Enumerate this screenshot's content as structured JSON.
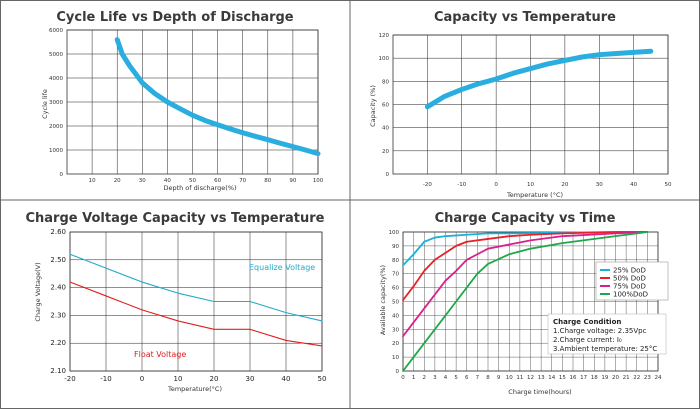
{
  "chart_data": [
    {
      "type": "line",
      "title": "Cycle Life vs Depth of Discharge",
      "xlabel": "Depth of discharge(%)",
      "ylabel": "Cycle life",
      "xlim": [
        0,
        100
      ],
      "ylim": [
        0,
        6000
      ],
      "xticks": [
        "10",
        "20",
        "30",
        "40",
        "50",
        "60",
        "70",
        "80",
        "90",
        "100"
      ],
      "yticks": [
        "1000",
        "2000",
        "3000",
        "4000",
        "5000",
        "6000"
      ],
      "color": "#2aaee0",
      "series": [
        {
          "x": [
            20,
            22,
            25,
            30,
            35,
            40,
            45,
            50,
            55,
            60,
            65,
            70,
            75,
            80,
            85,
            90,
            95,
            100
          ],
          "y": [
            5600,
            5000,
            4500,
            3800,
            3350,
            3000,
            2720,
            2450,
            2230,
            2050,
            1880,
            1720,
            1570,
            1430,
            1280,
            1140,
            1000,
            850
          ]
        }
      ]
    },
    {
      "type": "line",
      "title": "Capacity vs Temperature",
      "xlabel": "Temperature (°C)",
      "ylabel": "Capacity (%)",
      "xlim": [
        -30,
        50
      ],
      "ylim": [
        0,
        120
      ],
      "xticks": [
        "-20",
        "-10",
        "0",
        "10",
        "20",
        "30",
        "40",
        "50"
      ],
      "yticks": [
        "20",
        "40",
        "60",
        "80",
        "100",
        "120"
      ],
      "color": "#2aaee0",
      "series": [
        {
          "x": [
            -20,
            -15,
            -10,
            -5,
            0,
            5,
            10,
            15,
            20,
            25,
            30,
            35,
            40,
            45
          ],
          "y": [
            58,
            67,
            73,
            78,
            82,
            87,
            91,
            95,
            98,
            101,
            103,
            104,
            105,
            106
          ]
        }
      ]
    },
    {
      "type": "line",
      "title": "Charge Voltage Capacity vs Temperature",
      "xlabel": "Temperature(°C)",
      "ylabel": "Charge Voltage(V)",
      "xlim": [
        -20,
        50
      ],
      "ylim": [
        2.1,
        2.6
      ],
      "xticks": [
        "-20",
        "-10",
        "0",
        "10",
        "20",
        "30",
        "40",
        "50"
      ],
      "yticks": [
        "2.10",
        "2.20",
        "2.30",
        "2.40",
        "2.50",
        "2.60"
      ],
      "series": [
        {
          "name": "Equalize Voltage",
          "color": "#22aacc",
          "x": [
            -20,
            -10,
            0,
            10,
            20,
            30,
            40,
            50
          ],
          "y": [
            2.52,
            2.47,
            2.42,
            2.38,
            2.35,
            2.35,
            2.31,
            2.28
          ]
        },
        {
          "name": "Float Voltage",
          "color": "#e02020",
          "x": [
            -20,
            -10,
            0,
            10,
            20,
            30,
            40,
            50
          ],
          "y": [
            2.42,
            2.37,
            2.32,
            2.28,
            2.25,
            2.25,
            2.21,
            2.19
          ]
        }
      ],
      "annotations": [
        "Equalize Voltage",
        "Float Voltage"
      ]
    },
    {
      "type": "line",
      "title": "Charge Capacity vs Time",
      "xlabel": "Charge time(hours)",
      "ylabel": "Available capacity(%)",
      "xlim": [
        0,
        24
      ],
      "ylim": [
        0,
        100
      ],
      "xticks": [
        "0",
        "1",
        "2",
        "3",
        "4",
        "5",
        "6",
        "7",
        "8",
        "9",
        "10",
        "11",
        "12",
        "13",
        "14",
        "15",
        "16",
        "17",
        "18",
        "19",
        "20",
        "21",
        "22",
        "23",
        "24"
      ],
      "yticks": [
        "0",
        "10",
        "20",
        "30",
        "40",
        "50",
        "60",
        "70",
        "80",
        "90",
        "100"
      ],
      "legend_position": "right",
      "series": [
        {
          "name": "25%  DoD",
          "color": "#17b2d8",
          "x": [
            0,
            1,
            2,
            3,
            4,
            6,
            8,
            10,
            15,
            20,
            23
          ],
          "y": [
            76,
            84,
            93,
            96,
            97,
            98,
            99,
            99,
            99.5,
            100,
            100
          ]
        },
        {
          "name": "50%  DoD",
          "color": "#e8202a",
          "x": [
            0,
            1,
            2,
            3,
            4,
            5,
            6,
            8,
            10,
            12,
            15,
            20,
            23
          ],
          "y": [
            51,
            61,
            72,
            80,
            85,
            90,
            93,
            95,
            97,
            98,
            99,
            100,
            100
          ]
        },
        {
          "name": "75%  DoD",
          "color": "#d8208c",
          "x": [
            0,
            1,
            2,
            3,
            4,
            5,
            6,
            7,
            8,
            10,
            12,
            15,
            20,
            23
          ],
          "y": [
            25,
            35,
            45,
            55,
            65,
            72,
            80,
            84,
            88,
            91,
            94,
            97,
            99,
            100
          ]
        },
        {
          "name": "100%DoD",
          "color": "#20a848",
          "x": [
            0,
            1,
            2,
            3,
            4,
            5,
            6,
            7,
            8,
            10,
            12,
            15,
            20,
            23
          ],
          "y": [
            0,
            10,
            20,
            30,
            40,
            50,
            60,
            70,
            77,
            84,
            88,
            92,
            97,
            100
          ]
        }
      ],
      "condition": {
        "title": "Charge Condition",
        "lines": [
          "1.Charge voltage: 2.35Vpc",
          "2.Charge current: I₀",
          "3.Ambient temperature: 25°C"
        ]
      }
    }
  ]
}
